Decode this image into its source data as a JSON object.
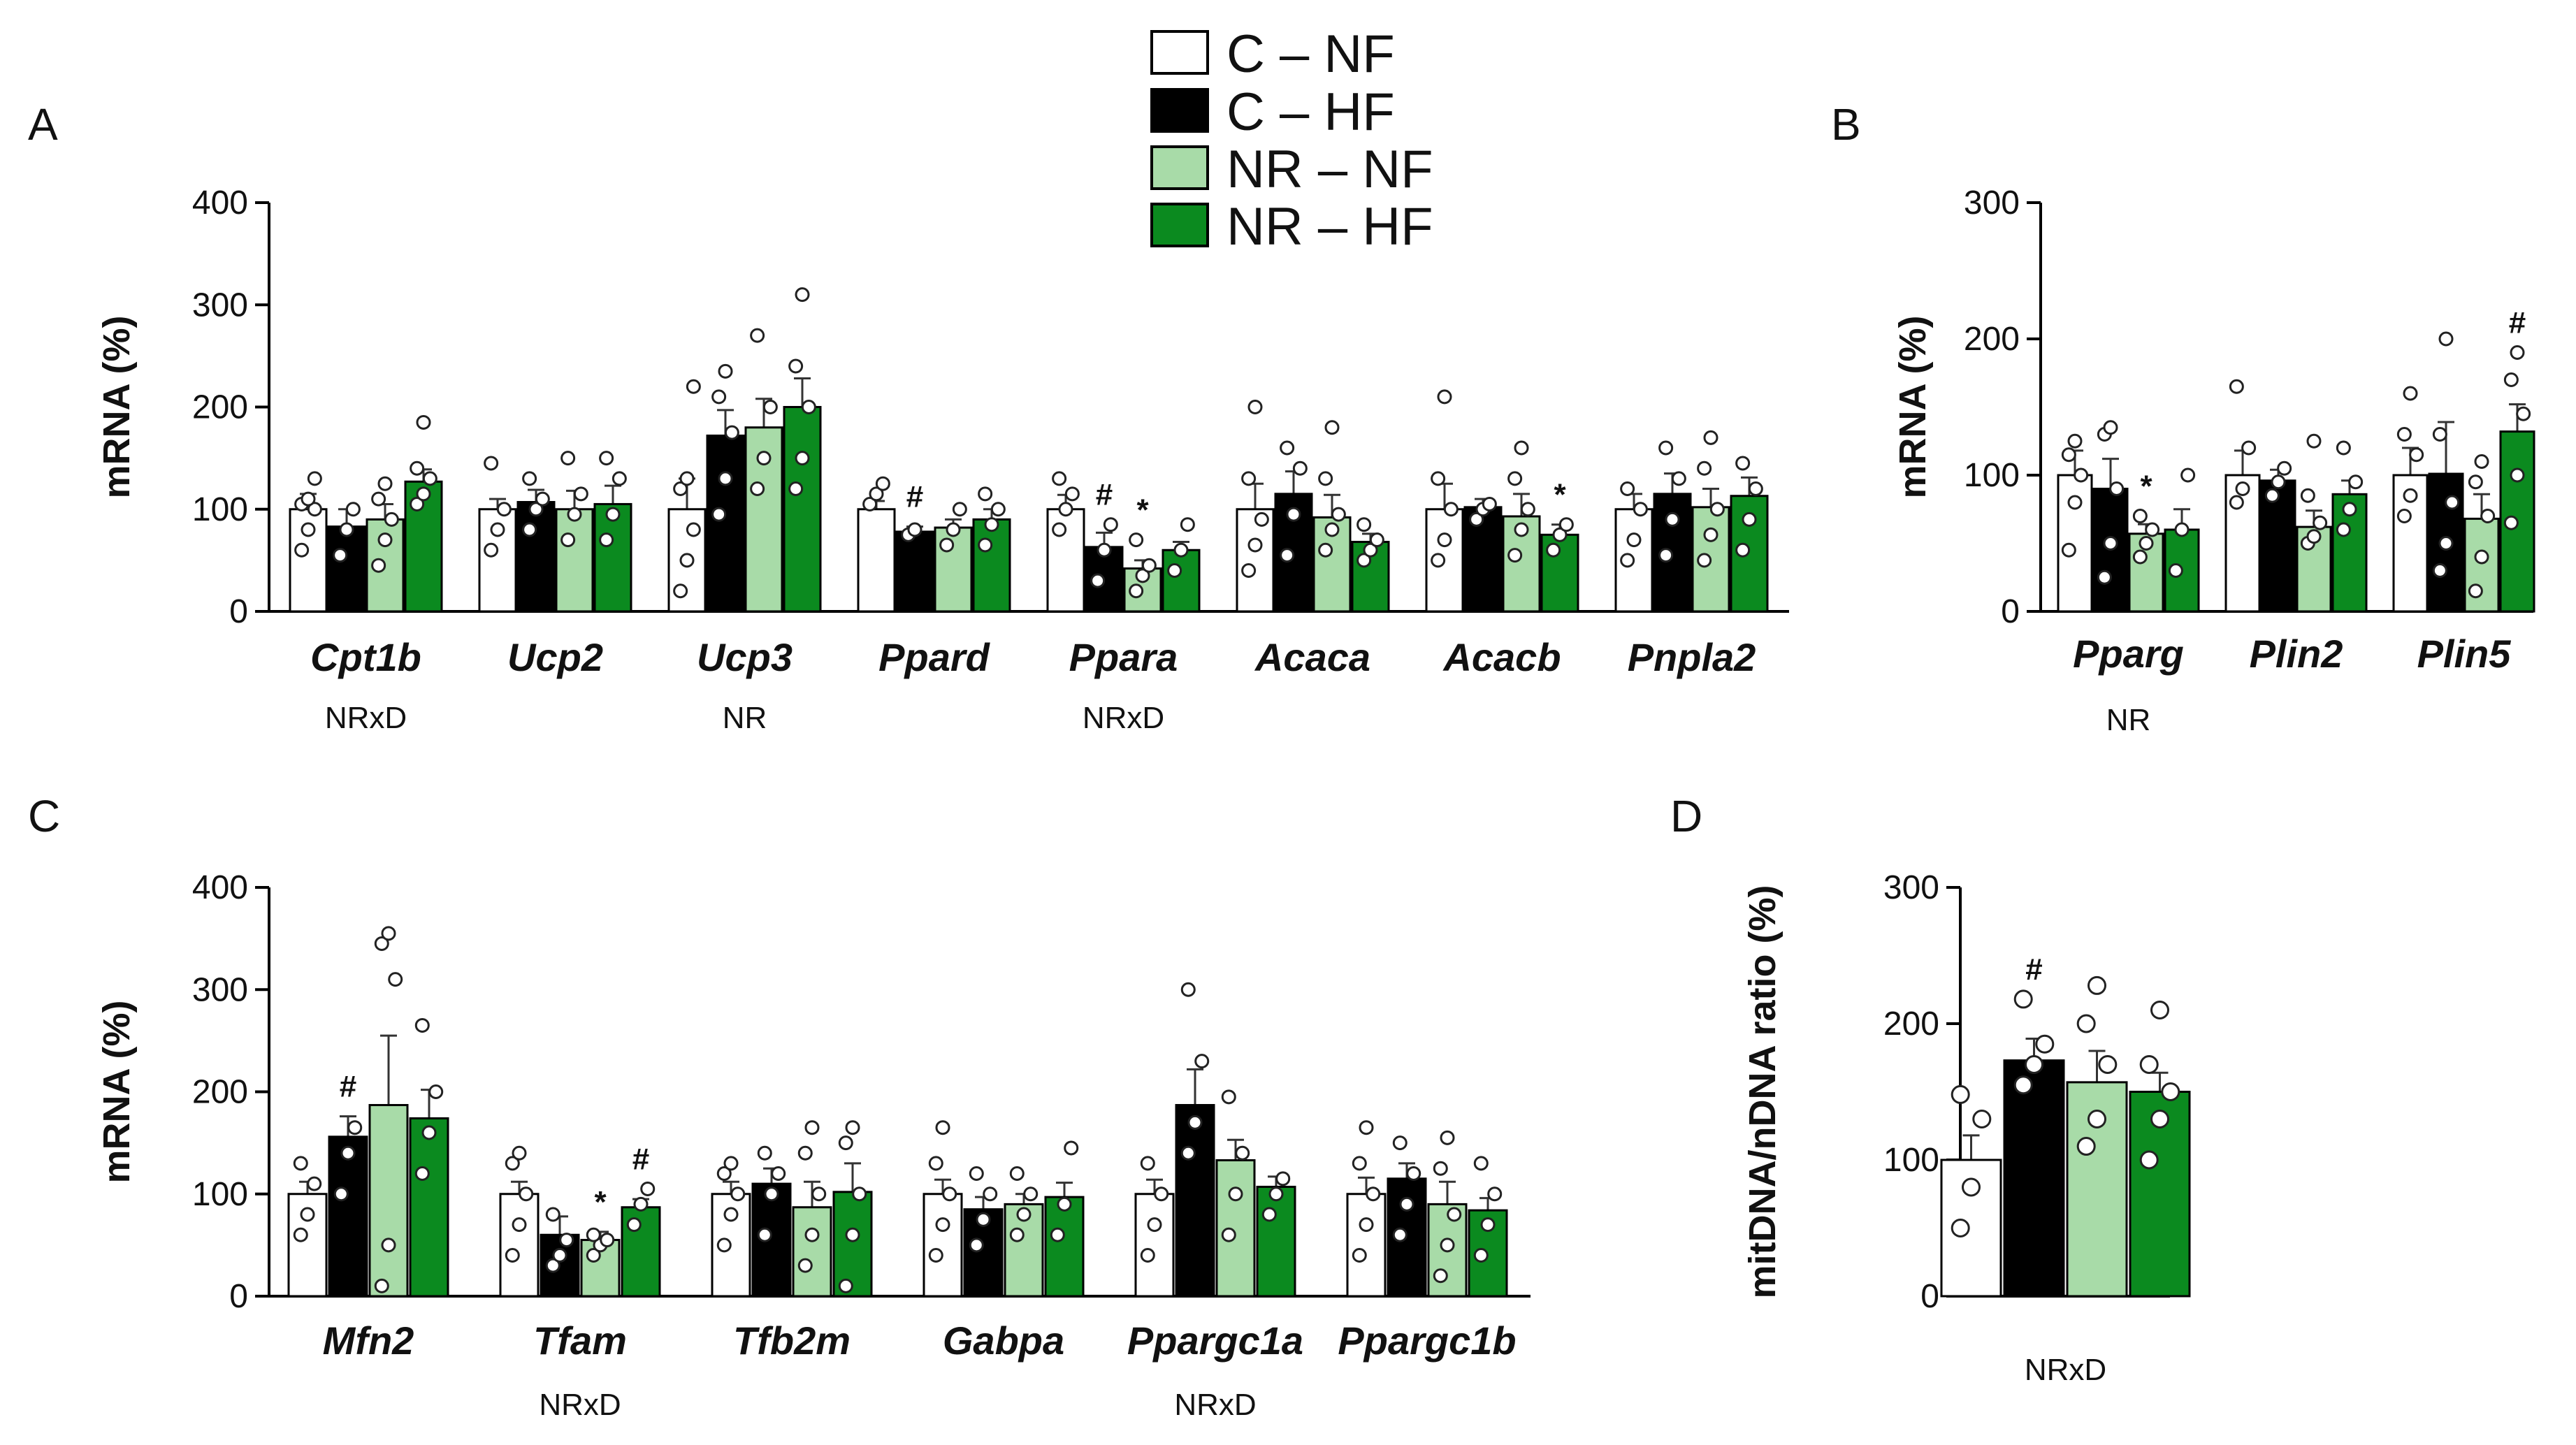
{
  "legend": [
    {
      "label": "C – NF",
      "color": "#ffffff"
    },
    {
      "label": "C – HF",
      "color": "#000000"
    },
    {
      "label": "NR – NF",
      "color": "#a8dba8"
    },
    {
      "label": "NR – HF",
      "color": "#0b8a1f"
    }
  ],
  "chart_data": [
    {
      "panel": "A",
      "type": "bar",
      "ylabel": "mRNA (%)",
      "ylim": [
        0,
        400
      ],
      "yticks": [
        0,
        100,
        200,
        300,
        400
      ],
      "categories": [
        "Cpt1b",
        "Ucp2",
        "Ucp3",
        "Ppard",
        "Ppara",
        "Acaca",
        "Acacb",
        "Pnpla2"
      ],
      "series": [
        {
          "name": "C – NF",
          "values": [
            100,
            100,
            100,
            100,
            100,
            100,
            100,
            100
          ],
          "errors": [
            15,
            10,
            30,
            8,
            14,
            25,
            25,
            15
          ]
        },
        {
          "name": "C – HF",
          "values": [
            83,
            107,
            172,
            78,
            63,
            115,
            102,
            115
          ],
          "errors": [
            17,
            12,
            25,
            5,
            14,
            22,
            8,
            20
          ]
        },
        {
          "name": "NR – NF",
          "values": [
            90,
            100,
            180,
            82,
            42,
            92,
            93,
            102
          ],
          "errors": [
            15,
            18,
            28,
            8,
            8,
            22,
            22,
            18
          ]
        },
        {
          "name": "NR – HF",
          "values": [
            127,
            105,
            200,
            90,
            60,
            68,
            75,
            113
          ],
          "errors": [
            12,
            18,
            28,
            10,
            8,
            8,
            10,
            18
          ]
        }
      ],
      "points": [
        [
          [
            60,
            80,
            100,
            105,
            110,
            130
          ],
          [
            60,
            80,
            100,
            145
          ],
          [
            20,
            50,
            80,
            120,
            130,
            220
          ],
          [
            105,
            115,
            125
          ],
          [
            80,
            100,
            115,
            130
          ],
          [
            40,
            65,
            90,
            130,
            200
          ],
          [
            50,
            70,
            100,
            130,
            210
          ],
          [
            50,
            70,
            100,
            120
          ]
        ],
        [
          [
            55,
            80,
            100
          ],
          [
            80,
            100,
            110,
            130
          ],
          [
            95,
            130,
            175,
            210,
            235
          ],
          [
            75,
            80
          ],
          [
            30,
            60,
            85
          ],
          [
            55,
            95,
            140,
            160
          ],
          [
            90,
            100,
            105
          ],
          [
            55,
            90,
            130,
            160
          ]
        ],
        [
          [
            45,
            70,
            90,
            110,
            125
          ],
          [
            70,
            95,
            115,
            150
          ],
          [
            120,
            150,
            200,
            270
          ],
          [
            65,
            80,
            100
          ],
          [
            20,
            35,
            45,
            70
          ],
          [
            60,
            80,
            95,
            130,
            180
          ],
          [
            55,
            80,
            100,
            130,
            160
          ],
          [
            50,
            75,
            100,
            140,
            170
          ]
        ],
        [
          [
            105,
            115,
            130,
            140,
            185
          ],
          [
            70,
            95,
            130,
            150
          ],
          [
            120,
            150,
            200,
            240,
            310
          ],
          [
            65,
            85,
            100,
            115
          ],
          [
            40,
            60,
            85
          ],
          [
            50,
            60,
            70,
            85
          ],
          [
            60,
            75,
            85
          ],
          [
            60,
            90,
            120,
            145
          ]
        ]
      ],
      "markers": [
        {
          "category": 3,
          "series": 1,
          "text": "#"
        },
        {
          "category": 4,
          "series": 1,
          "text": "#"
        },
        {
          "category": 4,
          "series": 2,
          "text": "*"
        },
        {
          "category": 6,
          "series": 3,
          "text": "*"
        }
      ],
      "significance": [
        {
          "category": 0,
          "text": "NRxD"
        },
        {
          "category": 2,
          "text": "NR"
        },
        {
          "category": 4,
          "text": "NRxD"
        }
      ]
    },
    {
      "panel": "B",
      "type": "bar",
      "ylabel": "mRNA (%)",
      "ylim": [
        0,
        300
      ],
      "yticks": [
        0,
        100,
        200,
        300
      ],
      "categories": [
        "Pparg",
        "Plin2",
        "Plin5"
      ],
      "series": [
        {
          "name": "C – NF",
          "values": [
            100,
            100,
            100
          ],
          "errors": [
            18,
            18,
            20
          ]
        },
        {
          "name": "C – HF",
          "values": [
            90,
            96,
            101
          ],
          "errors": [
            22,
            8,
            38
          ]
        },
        {
          "name": "NR – NF",
          "values": [
            57,
            62,
            68
          ],
          "errors": [
            7,
            12,
            18
          ]
        },
        {
          "name": "NR – HF",
          "values": [
            60,
            86,
            132
          ],
          "errors": [
            15,
            10,
            20
          ]
        }
      ],
      "points": [
        [
          [
            45,
            80,
            100,
            115,
            125
          ],
          [
            80,
            90,
            120,
            165
          ],
          [
            70,
            85,
            115,
            130,
            160
          ]
        ],
        [
          [
            25,
            50,
            90,
            130,
            135
          ],
          [
            85,
            95,
            105
          ],
          [
            30,
            50,
            80,
            130,
            200
          ]
        ],
        [
          [
            40,
            50,
            60,
            70
          ],
          [
            50,
            55,
            65,
            85,
            125
          ],
          [
            15,
            40,
            70,
            95,
            110
          ]
        ],
        [
          [
            30,
            60,
            100
          ],
          [
            60,
            75,
            95,
            120
          ],
          [
            65,
            100,
            145,
            170,
            190
          ]
        ]
      ],
      "markers": [
        {
          "category": 0,
          "series": 2,
          "text": "*"
        },
        {
          "category": 2,
          "series": 3,
          "text": "#"
        }
      ],
      "significance": [
        {
          "category": 0,
          "text": "NR"
        }
      ]
    },
    {
      "panel": "C",
      "type": "bar",
      "ylabel": "mRNA (%)",
      "ylim": [
        0,
        400
      ],
      "yticks": [
        0,
        100,
        200,
        300,
        400
      ],
      "categories": [
        "Mfn2",
        "Tfam",
        "Tfb2m",
        "Gabpa",
        "Ppargc1a",
        "Ppargc1b"
      ],
      "series": [
        {
          "name": "C – NF",
          "values": [
            100,
            100,
            100,
            100,
            100,
            100
          ],
          "errors": [
            12,
            12,
            12,
            14,
            14,
            16
          ]
        },
        {
          "name": "C – HF",
          "values": [
            156,
            60,
            110,
            85,
            187,
            115
          ],
          "errors": [
            20,
            18,
            15,
            12,
            35,
            15
          ]
        },
        {
          "name": "NR – NF",
          "values": [
            187,
            55,
            87,
            90,
            133,
            90
          ],
          "errors": [
            68,
            8,
            25,
            10,
            20,
            22
          ]
        },
        {
          "name": "NR – HF",
          "values": [
            174,
            87,
            102,
            97,
            107,
            84
          ],
          "errors": [
            28,
            8,
            28,
            14,
            10,
            12
          ]
        }
      ],
      "points": [
        [
          [
            60,
            80,
            110,
            130
          ],
          [
            40,
            70,
            100,
            130,
            140
          ],
          [
            50,
            80,
            100,
            120,
            130
          ],
          [
            40,
            70,
            100,
            130,
            165
          ],
          [
            40,
            70,
            100,
            130
          ],
          [
            40,
            70,
            100,
            130,
            165
          ]
        ],
        [
          [
            100,
            140,
            165
          ],
          [
            30,
            40,
            55,
            80
          ],
          [
            60,
            100,
            120,
            140
          ],
          [
            50,
            75,
            100,
            120
          ],
          [
            140,
            170,
            230,
            300
          ],
          [
            60,
            90,
            120,
            150
          ]
        ],
        [
          [
            10,
            50,
            310,
            345,
            355
          ],
          [
            40,
            50,
            55,
            60
          ],
          [
            30,
            60,
            100,
            140,
            165
          ],
          [
            60,
            80,
            100,
            120
          ],
          [
            60,
            100,
            140,
            195
          ],
          [
            20,
            50,
            80,
            125,
            155
          ]
        ],
        [
          [
            120,
            160,
            200,
            265
          ],
          [
            70,
            90,
            105
          ],
          [
            10,
            60,
            100,
            150,
            165
          ],
          [
            60,
            90,
            145
          ],
          [
            80,
            100,
            115
          ],
          [
            40,
            70,
            100,
            130
          ]
        ]
      ],
      "markers": [
        {
          "category": 0,
          "series": 1,
          "text": "#"
        },
        {
          "category": 1,
          "series": 2,
          "text": "*"
        },
        {
          "category": 1,
          "series": 3,
          "text": "#"
        }
      ],
      "significance": [
        {
          "category": 1,
          "text": "NRxD"
        },
        {
          "category": 4,
          "text": "NRxD"
        }
      ]
    },
    {
      "panel": "D",
      "type": "bar",
      "ylabel": "mitDNA/nDNA ratio (%)",
      "ylim": [
        0,
        300
      ],
      "yticks": [
        0,
        100,
        200,
        300
      ],
      "categories": [
        ""
      ],
      "series": [
        {
          "name": "C – NF",
          "values": [
            100
          ],
          "errors": [
            18
          ]
        },
        {
          "name": "C – HF",
          "values": [
            173
          ],
          "errors": [
            16
          ]
        },
        {
          "name": "NR – NF",
          "values": [
            157
          ],
          "errors": [
            23
          ]
        },
        {
          "name": "NR – HF",
          "values": [
            150
          ],
          "errors": [
            14
          ]
        }
      ],
      "points": [
        [
          [
            50,
            80,
            130,
            148
          ]
        ],
        [
          [
            155,
            170,
            185,
            218
          ]
        ],
        [
          [
            110,
            130,
            170,
            200,
            228
          ]
        ],
        [
          [
            100,
            130,
            150,
            170,
            210
          ]
        ]
      ],
      "markers": [
        {
          "category": 0,
          "series": 1,
          "text": "#"
        }
      ],
      "significance": [
        {
          "category": 0,
          "text": "NRxD"
        }
      ]
    }
  ]
}
